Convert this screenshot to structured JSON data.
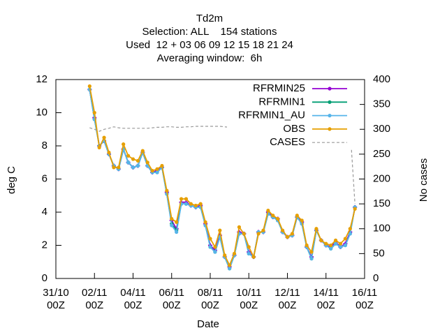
{
  "chart_data": {
    "type": "line",
    "title": [
      "Td2m",
      "Selection: ALL    154 stations",
      "Used  12 + 03 06 09 12 15 18 21 24",
      "Averaging window:  6h"
    ],
    "x_label": "Date",
    "y_label": "deg C",
    "y2_label": "No cases",
    "x": [
      "01/11 18Z",
      "02/11 00Z",
      "02/11 06Z",
      "02/11 12Z",
      "02/11 18Z",
      "03/11 00Z",
      "03/11 06Z",
      "03/11 12Z",
      "03/11 18Z",
      "04/11 00Z",
      "04/11 06Z",
      "04/11 12Z",
      "04/11 18Z",
      "05/11 00Z",
      "05/11 06Z",
      "05/11 12Z",
      "05/11 18Z",
      "06/11 00Z",
      "06/11 06Z",
      "06/11 12Z",
      "06/11 18Z",
      "07/11 00Z",
      "07/11 06Z",
      "07/11 12Z",
      "07/11 18Z",
      "08/11 00Z",
      "08/11 06Z",
      "08/11 12Z",
      "08/11 18Z",
      "09/11 00Z",
      "09/11 06Z",
      "09/11 12Z",
      "09/11 18Z",
      "10/11 00Z",
      "10/11 06Z",
      "10/11 12Z",
      "10/11 18Z",
      "11/11 00Z",
      "11/11 06Z",
      "11/11 12Z",
      "11/11 18Z",
      "12/11 00Z",
      "12/11 06Z",
      "12/11 12Z",
      "12/11 18Z",
      "13/11 00Z",
      "13/11 06Z",
      "13/11 12Z",
      "13/11 18Z",
      "14/11 00Z",
      "14/11 06Z",
      "14/11 12Z",
      "14/11 18Z",
      "15/11 00Z",
      "15/11 06Z",
      "15/11 12Z"
    ],
    "xlim": [
      "31/10 00Z",
      "16/11 00Z"
    ],
    "xticks": [
      "31/10 00Z",
      "02/11 00Z",
      "04/11 00Z",
      "06/11 00Z",
      "08/11 00Z",
      "10/11 00Z",
      "12/11 00Z",
      "14/11 00Z",
      "16/11 00Z"
    ],
    "ylim": [
      0,
      12
    ],
    "yticks": [
      0,
      2,
      4,
      6,
      8,
      10,
      12
    ],
    "y2lim": [
      0,
      400
    ],
    "y2ticks": [
      0,
      50,
      100,
      150,
      200,
      250,
      300,
      350,
      400
    ],
    "series": [
      {
        "name": "RFRMIN25",
        "color": "#9400d3",
        "marker": "cross",
        "values": [
          11.4,
          9.7,
          8.0,
          8.3,
          7.5,
          6.8,
          6.6,
          7.8,
          7.0,
          6.7,
          6.8,
          7.6,
          6.8,
          6.4,
          6.5,
          6.7,
          5.2,
          3.5,
          3.0,
          4.6,
          4.6,
          4.4,
          4.3,
          4.4,
          3.3,
          2.0,
          1.7,
          2.6,
          1.3,
          0.7,
          1.4,
          2.8,
          2.7,
          1.6,
          1.3,
          2.8,
          2.8,
          4.0,
          3.7,
          3.6,
          2.8,
          2.5,
          2.6,
          3.7,
          3.4,
          1.9,
          1.3,
          2.9,
          2.3,
          2.0,
          1.9,
          2.2,
          1.9,
          2.1,
          2.8,
          4.3
        ]
      },
      {
        "name": "RFRMIN1",
        "color": "#009e73",
        "marker": "circle",
        "values": [
          11.4,
          9.6,
          8.0,
          8.3,
          7.5,
          6.8,
          6.6,
          7.8,
          7.0,
          6.7,
          6.8,
          7.6,
          6.8,
          6.4,
          6.4,
          6.7,
          5.1,
          3.3,
          2.9,
          4.5,
          4.5,
          4.4,
          4.3,
          4.3,
          3.2,
          1.9,
          1.6,
          2.5,
          1.3,
          0.6,
          1.4,
          2.7,
          2.7,
          1.5,
          1.3,
          2.8,
          2.8,
          3.9,
          3.7,
          3.5,
          2.8,
          2.5,
          2.6,
          3.7,
          3.3,
          1.9,
          1.2,
          2.9,
          2.3,
          2.0,
          1.8,
          2.1,
          1.9,
          2.0,
          2.7,
          4.3
        ]
      },
      {
        "name": "RFRMIN1_AU",
        "color": "#56b4e9",
        "marker": "circle",
        "values": [
          11.4,
          9.6,
          8.0,
          8.3,
          7.5,
          6.8,
          6.6,
          7.8,
          7.0,
          6.7,
          6.8,
          7.6,
          6.8,
          6.4,
          6.4,
          6.7,
          5.1,
          3.2,
          2.8,
          4.5,
          4.5,
          4.4,
          4.3,
          4.3,
          3.2,
          1.9,
          1.6,
          2.5,
          1.3,
          0.6,
          1.4,
          2.7,
          2.7,
          1.5,
          1.3,
          2.8,
          2.8,
          3.9,
          3.7,
          3.5,
          2.8,
          2.5,
          2.6,
          3.7,
          3.3,
          1.9,
          1.2,
          2.9,
          2.3,
          2.0,
          1.8,
          2.1,
          1.9,
          2.0,
          2.7,
          4.3
        ]
      },
      {
        "name": "OBS",
        "color": "#e69f00",
        "marker": "circle",
        "values": [
          11.6,
          10.0,
          7.9,
          8.5,
          7.6,
          6.7,
          6.7,
          8.1,
          7.4,
          7.2,
          7.1,
          7.7,
          7.0,
          6.5,
          6.6,
          6.8,
          5.3,
          3.6,
          3.4,
          4.8,
          4.8,
          4.5,
          4.4,
          4.5,
          3.4,
          2.4,
          1.9,
          2.9,
          1.4,
          0.8,
          1.5,
          3.1,
          2.7,
          1.9,
          1.3,
          2.7,
          2.9,
          4.1,
          3.8,
          3.6,
          2.9,
          2.5,
          2.7,
          3.8,
          3.5,
          2.0,
          1.6,
          3.0,
          2.3,
          2.1,
          2.0,
          2.3,
          2.1,
          2.4,
          3.0,
          4.2
        ]
      },
      {
        "name": "CASES",
        "color": "#999999",
        "dashed": true,
        "axis": "y2",
        "values": [
          303,
          300,
          296,
          300,
          302,
          305,
          303,
          302,
          302,
          302,
          302,
          302,
          302,
          303,
          304,
          304,
          305,
          305,
          304,
          304,
          305,
          305,
          306,
          306,
          306,
          306,
          306,
          306,
          305,
          304,
          302,
          300,
          300,
          300,
          300,
          300,
          300,
          300,
          300,
          301,
          301,
          301,
          301,
          301,
          301,
          301,
          301,
          301,
          301,
          301,
          301,
          301,
          301,
          301,
          301,
          150
        ]
      }
    ],
    "legend": "top-right",
    "grid": false
  }
}
